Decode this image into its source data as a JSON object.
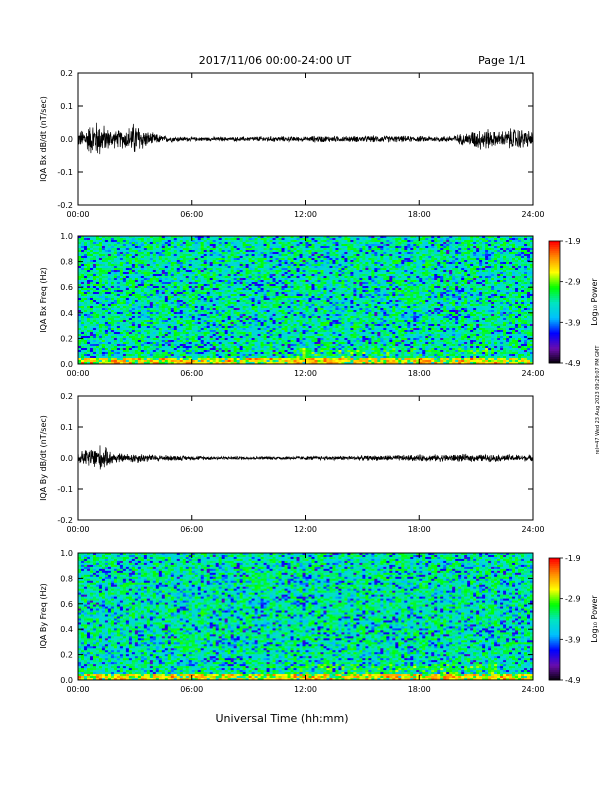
{
  "header": {
    "title": "2017/11/06  00:00-24:00 UT",
    "page": "Page 1/1"
  },
  "footer": {
    "xlabel": "Universal Time (hh:mm)"
  },
  "side_note": "rel=47 Wed 23 Aug 2023 09:29:07 PM GMT",
  "colorbar": {
    "label": "Log₁₀ Power",
    "ticks": [
      "-1.9",
      "-2.9",
      "-3.9",
      "-4.9"
    ],
    "range": [
      -4.9,
      -1.9
    ],
    "colormap": [
      "#000000",
      "#6a0dad",
      "#0000ff",
      "#00bfff",
      "#00e5c0",
      "#00ff00",
      "#ffff00",
      "#ff8c00",
      "#ff0000"
    ]
  },
  "x_ticks": [
    "00:00",
    "06:00",
    "12:00",
    "18:00",
    "24:00"
  ],
  "chart_data": [
    {
      "type": "line",
      "ylabel": "IQA Bx dB/dt (nT/sec)",
      "xlabel": "",
      "xlim": [
        0,
        24
      ],
      "ylim": [
        -0.2,
        0.2
      ],
      "y_ticks": [
        "0.2",
        "0.1",
        "0.0",
        "-0.1",
        "-0.2"
      ],
      "color": "#000000",
      "series": [
        {
          "x_hours": [
            0,
            0.5,
            0.9,
            1.2,
            1.5,
            2.0,
            2.5,
            3.0,
            3.3,
            3.7,
            4.5,
            6.0,
            8.0,
            10.0,
            12.0,
            12.5,
            14.0,
            16.0,
            18.0,
            19.5,
            20.5,
            21.0,
            21.5,
            22.0,
            22.5,
            23.0,
            23.5,
            24.0
          ],
          "envelope": [
            0.025,
            0.045,
            0.065,
            0.06,
            0.04,
            0.03,
            0.035,
            0.06,
            0.045,
            0.025,
            0.012,
            0.007,
            0.007,
            0.01,
            0.008,
            0.012,
            0.01,
            0.012,
            0.01,
            0.01,
            0.022,
            0.035,
            0.04,
            0.025,
            0.03,
            0.04,
            0.035,
            0.025
          ]
        }
      ]
    },
    {
      "type": "heatmap",
      "ylabel": "IQA Bx Freq (Hz)",
      "xlabel": "",
      "xlim": [
        0,
        24
      ],
      "ylim": [
        0.0,
        1.0
      ],
      "y_ticks": [
        "1.0",
        "0.8",
        "0.6",
        "0.4",
        "0.2",
        "0.0"
      ],
      "zlim": [
        -4.9,
        -1.9
      ],
      "typical_log_power": -3.3
    },
    {
      "type": "line",
      "ylabel": "IQA By dB/dt (nT/sec)",
      "xlabel": "",
      "xlim": [
        0,
        24
      ],
      "ylim": [
        -0.2,
        0.2
      ],
      "y_ticks": [
        "0.2",
        "0.1",
        "0.0",
        "-0.1",
        "-0.2"
      ],
      "color": "#000000",
      "series": [
        {
          "x_hours": [
            0,
            0.5,
            1.0,
            1.3,
            1.6,
            2.0,
            2.5,
            3.0,
            4.0,
            6.0,
            8.0,
            10.0,
            12.0,
            14.0,
            16.0,
            18.0,
            20.0,
            22.0,
            24.0
          ],
          "envelope": [
            0.02,
            0.035,
            0.05,
            0.045,
            0.03,
            0.02,
            0.015,
            0.02,
            0.012,
            0.008,
            0.006,
            0.006,
            0.007,
            0.008,
            0.01,
            0.012,
            0.014,
            0.013,
            0.012
          ]
        }
      ]
    },
    {
      "type": "heatmap",
      "ylabel": "IQA By Freq (Hz)",
      "xlabel": "",
      "xlim": [
        0,
        24
      ],
      "ylim": [
        0.0,
        1.0
      ],
      "y_ticks": [
        "1.0",
        "0.8",
        "0.6",
        "0.4",
        "0.2",
        "0.0"
      ],
      "zlim": [
        -4.9,
        -1.9
      ],
      "typical_log_power": -3.3
    }
  ]
}
